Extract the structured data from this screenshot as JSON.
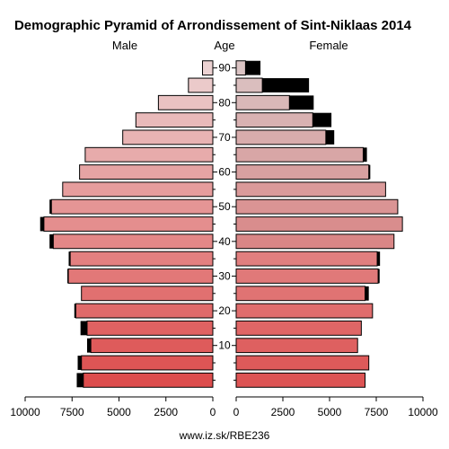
{
  "chart_data": {
    "type": "bar",
    "title": "Demographic Pyramid of Arrondissement of Sint-Niklaas 2014",
    "left_label": "Male",
    "center_label": "Age",
    "right_label": "Female",
    "age_ticks": [
      "10",
      "20",
      "30",
      "40",
      "50",
      "60",
      "70",
      "80",
      "90"
    ],
    "x_ticks_left": [
      "10000",
      "7500",
      "5000",
      "2500",
      "0"
    ],
    "x_ticks_right": [
      "0",
      "2500",
      "5000",
      "7500",
      "10000"
    ],
    "xlim": [
      0,
      10000
    ],
    "age_groups": [
      "0-4",
      "5-9",
      "10-14",
      "15-19",
      "20-24",
      "25-29",
      "30-34",
      "35-39",
      "40-44",
      "45-49",
      "50-54",
      "55-59",
      "60-64",
      "65-69",
      "70-74",
      "75-79",
      "80-84",
      "85-89",
      "90+"
    ],
    "series": [
      {
        "name": "Male",
        "values": [
          6900,
          7000,
          6500,
          6700,
          7300,
          7000,
          7700,
          7600,
          8500,
          9000,
          8600,
          8000,
          7100,
          6800,
          4800,
          4100,
          2900,
          1300,
          550
        ],
        "extra": [
          350,
          200,
          200,
          350,
          80,
          0,
          50,
          80,
          200,
          200,
          100,
          0,
          0,
          0,
          0,
          0,
          0,
          0,
          0
        ]
      },
      {
        "name": "Female",
        "values": [
          6900,
          7100,
          6500,
          6700,
          7300,
          6900,
          7600,
          7550,
          8450,
          8900,
          8650,
          8000,
          7100,
          6800,
          4800,
          4100,
          2850,
          1400,
          500
        ],
        "extra": [
          0,
          0,
          0,
          0,
          0,
          200,
          80,
          150,
          0,
          0,
          0,
          0,
          80,
          200,
          450,
          1000,
          1300,
          2500,
          800
        ]
      }
    ],
    "colors": [
      "#dd4d4d",
      "#dd5555",
      "#de5b5b",
      "#df6262",
      "#e06a6a",
      "#e17070",
      "#e27878",
      "#e38080",
      "#e38787",
      "#e48e8e",
      "#e59595",
      "#e69d9d",
      "#e6a4a4",
      "#e7abab",
      "#e8b3b3",
      "#e9baba",
      "#eac2c2",
      "#ebcaca",
      "#ecd2d2"
    ],
    "female_colors": [
      "#dd5454",
      "#dd5a5a",
      "#de6060",
      "#df6666",
      "#df6d6d",
      "#e07373",
      "#e07979",
      "#e17f7f",
      "#d98686",
      "#d98d8d",
      "#da9494",
      "#da9a9a",
      "#d8a0a0",
      "#d8a6a6",
      "#d8acac",
      "#d9b2b2",
      "#d9b8b8",
      "#dabebe",
      "#dbc4c4"
    ],
    "footer": "www.iz.sk/RBE236"
  }
}
